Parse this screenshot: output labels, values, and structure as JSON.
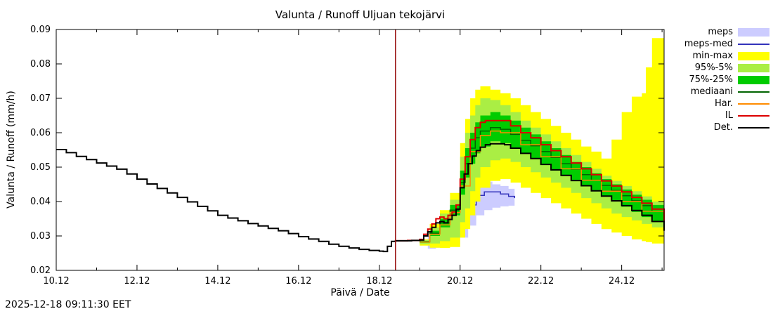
{
  "title": "Valunta / Runoff  Uljuan tekojärvi",
  "timestamp": "2025-12-18 09:11:30 EET",
  "axes": {
    "xlabel": "Päivä / Date",
    "ylabel": "Valunta / Runoff (mm/h)"
  },
  "legend": [
    {
      "label": "meps",
      "swatch": "band",
      "color": "#ccccff"
    },
    {
      "label": "meps-med",
      "swatch": "line",
      "color": "#3333bb"
    },
    {
      "label": "min-max",
      "swatch": "band",
      "color": "#ffff00"
    },
    {
      "label": "95%-5%",
      "swatch": "band",
      "color": "#aaee44"
    },
    {
      "label": "75%-25%",
      "swatch": "band",
      "color": "#00cc00"
    },
    {
      "label": "mediaani",
      "swatch": "line",
      "color": "#006400"
    },
    {
      "label": "Har.",
      "swatch": "line",
      "color": "#ff8c00"
    },
    {
      "label": "IL",
      "swatch": "line",
      "color": "#dd0000"
    },
    {
      "label": "Det.",
      "swatch": "line",
      "color": "#000000"
    }
  ],
  "chart_data": {
    "type": "line",
    "title": "Valunta / Runoff  Uljuan tekojärvi",
    "xlabel": "Päivä / Date",
    "ylabel": "Valunta / Runoff (mm/h)",
    "xlim": [
      10.0,
      25.05
    ],
    "ylim": [
      0.02,
      0.09
    ],
    "grid": false,
    "legend_position": "outside-right",
    "xticks": [
      {
        "v": 10,
        "label": "10.12"
      },
      {
        "v": 12,
        "label": "12.12"
      },
      {
        "v": 14,
        "label": "14.12"
      },
      {
        "v": 16,
        "label": "16.12"
      },
      {
        "v": 18,
        "label": "18.12"
      },
      {
        "v": 20,
        "label": "20.12"
      },
      {
        "v": 22,
        "label": "22.12"
      },
      {
        "v": 24,
        "label": "24.12"
      }
    ],
    "xminor": [
      11,
      13,
      15,
      17,
      19,
      21,
      23,
      25
    ],
    "yticks": [
      {
        "v": 0.02,
        "label": "0.02"
      },
      {
        "v": 0.03,
        "label": "0.03"
      },
      {
        "v": 0.04,
        "label": "0.04"
      },
      {
        "v": 0.05,
        "label": "0.05"
      },
      {
        "v": 0.06,
        "label": "0.06"
      },
      {
        "v": 0.07,
        "label": "0.07"
      },
      {
        "v": 0.08,
        "label": "0.08"
      },
      {
        "v": 0.09,
        "label": "0.09"
      }
    ],
    "now_line": {
      "x": 18.4,
      "color": "#991111"
    },
    "layers": [
      {
        "kind": "band",
        "name": "meps",
        "color": "#ccccff",
        "x": [
          19.2,
          19.4,
          19.6,
          19.8,
          20.0,
          20.2,
          20.4,
          20.6,
          20.8,
          21.0,
          21.2,
          21.35
        ],
        "upper": [
          0.03,
          0.033,
          0.0345,
          0.0368,
          0.04,
          0.0442,
          0.046,
          0.0458,
          0.045,
          0.0445,
          0.0437,
          0.043
        ],
        "lower": [
          0.0263,
          0.0266,
          0.027,
          0.0278,
          0.0295,
          0.033,
          0.036,
          0.0375,
          0.0382,
          0.0386,
          0.0388,
          0.039
        ]
      },
      {
        "kind": "line",
        "name": "meps-med",
        "color": "#3333bb",
        "width": 1.5,
        "x": [
          19.2,
          19.4,
          19.6,
          19.8,
          20.0,
          20.2,
          20.4,
          20.6,
          20.8,
          21.0,
          21.2,
          21.35
        ],
        "y": [
          0.028,
          0.0295,
          0.0305,
          0.032,
          0.0345,
          0.039,
          0.0418,
          0.0428,
          0.0428,
          0.0422,
          0.0415,
          0.041
        ]
      },
      {
        "kind": "band",
        "name": "min-max",
        "color": "#ffff00",
        "x": [
          19.0,
          19.25,
          19.5,
          19.75,
          20.0,
          20.125,
          20.25,
          20.375,
          20.5,
          20.75,
          21.0,
          21.25,
          21.5,
          21.75,
          22.0,
          22.25,
          22.5,
          22.75,
          23.0,
          23.25,
          23.5,
          23.75,
          24.0,
          24.25,
          24.5,
          24.6,
          24.75,
          25.05
        ],
        "upper": [
          0.029,
          0.0335,
          0.0375,
          0.0425,
          0.057,
          0.064,
          0.07,
          0.0725,
          0.0735,
          0.0725,
          0.0715,
          0.07,
          0.068,
          0.066,
          0.064,
          0.062,
          0.06,
          0.058,
          0.056,
          0.0545,
          0.0525,
          0.058,
          0.066,
          0.0705,
          0.0715,
          0.079,
          0.0875,
          0.088
        ],
        "lower": [
          0.0272,
          0.0266,
          0.0265,
          0.0268,
          0.0295,
          0.032,
          0.036,
          0.04,
          0.044,
          0.046,
          0.0465,
          0.0455,
          0.044,
          0.0425,
          0.041,
          0.0395,
          0.038,
          0.0365,
          0.035,
          0.0335,
          0.032,
          0.031,
          0.03,
          0.029,
          0.0285,
          0.0282,
          0.0278,
          0.0272
        ]
      },
      {
        "kind": "band",
        "name": "95-5",
        "color": "#aaee44",
        "x": [
          19.0,
          19.25,
          19.5,
          19.75,
          20.0,
          20.125,
          20.25,
          20.375,
          20.5,
          20.75,
          21.0,
          21.25,
          21.5,
          21.75,
          22.0,
          22.25,
          22.5,
          22.75,
          23.0,
          23.25,
          23.5,
          23.75,
          24.0,
          24.25,
          24.5,
          24.75,
          25.05
        ],
        "upper": [
          0.0288,
          0.0325,
          0.0365,
          0.0405,
          0.053,
          0.06,
          0.065,
          0.068,
          0.07,
          0.0695,
          0.068,
          0.066,
          0.0635,
          0.0615,
          0.0595,
          0.0575,
          0.0555,
          0.0535,
          0.0515,
          0.0495,
          0.0475,
          0.046,
          0.0445,
          0.043,
          0.0415,
          0.04,
          0.0385
        ],
        "lower": [
          0.0276,
          0.0278,
          0.0285,
          0.0295,
          0.034,
          0.038,
          0.043,
          0.047,
          0.05,
          0.052,
          0.0525,
          0.0515,
          0.05,
          0.0485,
          0.047,
          0.0455,
          0.044,
          0.0425,
          0.041,
          0.0395,
          0.038,
          0.0365,
          0.0355,
          0.0345,
          0.0335,
          0.0325,
          0.0305
        ]
      },
      {
        "kind": "band",
        "name": "75-25",
        "color": "#00cc00",
        "x": [
          19.0,
          19.25,
          19.5,
          19.75,
          20.0,
          20.125,
          20.25,
          20.375,
          20.5,
          20.75,
          21.0,
          21.25,
          21.5,
          21.75,
          22.0,
          22.25,
          22.5,
          22.75,
          23.0,
          23.25,
          23.5,
          23.75,
          24.0,
          24.25,
          24.5,
          24.75,
          25.05
        ],
        "upper": [
          0.0285,
          0.0315,
          0.035,
          0.039,
          0.049,
          0.0555,
          0.06,
          0.063,
          0.065,
          0.066,
          0.065,
          0.0635,
          0.0615,
          0.0595,
          0.0575,
          0.0555,
          0.0535,
          0.0515,
          0.05,
          0.0482,
          0.0465,
          0.045,
          0.0435,
          0.042,
          0.0405,
          0.039,
          0.0365
        ],
        "lower": [
          0.028,
          0.03,
          0.0325,
          0.036,
          0.042,
          0.047,
          0.051,
          0.054,
          0.056,
          0.0575,
          0.057,
          0.0555,
          0.054,
          0.0525,
          0.051,
          0.049,
          0.0475,
          0.046,
          0.0445,
          0.043,
          0.0415,
          0.04,
          0.0385,
          0.037,
          0.0355,
          0.034,
          0.0325
        ]
      },
      {
        "kind": "line",
        "name": "mediaani",
        "color": "#006400",
        "width": 1.5,
        "x": [
          19.0,
          19.25,
          19.5,
          19.75,
          20.0,
          20.125,
          20.25,
          20.375,
          20.5,
          20.75,
          21.0,
          21.25,
          21.5,
          21.75,
          22.0,
          22.25,
          22.5,
          22.75,
          23.0,
          23.25,
          23.5,
          23.75,
          24.0,
          24.25,
          24.5,
          24.75,
          25.05
        ],
        "y": [
          0.0283,
          0.0308,
          0.0338,
          0.0375,
          0.0455,
          0.051,
          0.0555,
          0.0585,
          0.0605,
          0.0615,
          0.061,
          0.0595,
          0.0578,
          0.0562,
          0.0545,
          0.0528,
          0.051,
          0.0494,
          0.0478,
          0.0462,
          0.0447,
          0.0432,
          0.0417,
          0.0402,
          0.0388,
          0.0372,
          0.035
        ]
      },
      {
        "kind": "line",
        "name": "Har",
        "color": "#ff8c00",
        "width": 1.5,
        "x": [
          19.0,
          19.25,
          19.5,
          19.75,
          20.0,
          20.25,
          20.5,
          20.75,
          21.0,
          21.5,
          22.0,
          22.5,
          23.0,
          23.5,
          24.0,
          24.5,
          25.05
        ],
        "y": [
          0.0282,
          0.0305,
          0.0332,
          0.0368,
          0.0445,
          0.0545,
          0.0592,
          0.0605,
          0.06,
          0.0565,
          0.053,
          0.0495,
          0.0462,
          0.043,
          0.04,
          0.0372,
          0.0347
        ]
      },
      {
        "kind": "line",
        "name": "IL",
        "color": "#dd0000",
        "width": 2,
        "x": [
          18.4,
          18.7,
          19.0,
          19.1,
          19.2,
          19.3,
          19.4,
          19.5,
          19.6,
          19.7,
          19.8,
          19.9,
          20.0,
          20.125,
          20.25,
          20.375,
          20.5,
          20.625,
          20.75,
          21.0,
          21.25,
          21.5,
          21.75,
          22.0,
          22.25,
          22.5,
          22.75,
          23.0,
          23.25,
          23.5,
          23.75,
          24.0,
          24.25,
          24.5,
          24.75,
          25.05
        ],
        "y": [
          0.0286,
          0.0287,
          0.029,
          0.0305,
          0.032,
          0.0335,
          0.035,
          0.0355,
          0.035,
          0.036,
          0.037,
          0.039,
          0.0465,
          0.053,
          0.058,
          0.0615,
          0.063,
          0.0635,
          0.0635,
          0.0635,
          0.062,
          0.06,
          0.0585,
          0.0565,
          0.0548,
          0.053,
          0.0512,
          0.0495,
          0.0478,
          0.046,
          0.0445,
          0.0428,
          0.0412,
          0.0395,
          0.0378,
          0.034
        ]
      },
      {
        "kind": "line",
        "name": "Det",
        "color": "#000000",
        "width": 2,
        "x": [
          10.0,
          10.25,
          10.5,
          10.75,
          11.0,
          11.25,
          11.5,
          11.75,
          12.0,
          12.25,
          12.5,
          12.75,
          13.0,
          13.25,
          13.5,
          13.75,
          14.0,
          14.25,
          14.5,
          14.75,
          15.0,
          15.25,
          15.5,
          15.75,
          16.0,
          16.25,
          16.5,
          16.75,
          17.0,
          17.25,
          17.5,
          17.75,
          18.0,
          18.1,
          18.2,
          18.3,
          18.4,
          18.6,
          18.8,
          19.0,
          19.1,
          19.2,
          19.3,
          19.4,
          19.5,
          19.6,
          19.7,
          19.8,
          19.9,
          20.0,
          20.1,
          20.2,
          20.3,
          20.4,
          20.5,
          20.625,
          20.75,
          21.0,
          21.1,
          21.25,
          21.5,
          21.75,
          22.0,
          22.25,
          22.5,
          22.75,
          23.0,
          23.25,
          23.5,
          23.75,
          24.0,
          24.25,
          24.5,
          24.75,
          25.05
        ],
        "y": [
          0.0551,
          0.0542,
          0.0531,
          0.0522,
          0.0512,
          0.0503,
          0.0494,
          0.048,
          0.0465,
          0.0451,
          0.0438,
          0.0425,
          0.0412,
          0.0399,
          0.0386,
          0.0373,
          0.036,
          0.0352,
          0.0344,
          0.0336,
          0.0329,
          0.0322,
          0.0315,
          0.0307,
          0.0298,
          0.0291,
          0.0284,
          0.0276,
          0.027,
          0.0265,
          0.0261,
          0.0258,
          0.0256,
          0.0255,
          0.027,
          0.0284,
          0.0286,
          0.0286,
          0.0287,
          0.0288,
          0.03,
          0.0312,
          0.0325,
          0.0338,
          0.0342,
          0.0338,
          0.0348,
          0.036,
          0.0378,
          0.044,
          0.048,
          0.051,
          0.0532,
          0.0548,
          0.0558,
          0.0565,
          0.0568,
          0.0568,
          0.0565,
          0.0555,
          0.054,
          0.0525,
          0.0508,
          0.0492,
          0.0476,
          0.0461,
          0.0446,
          0.0431,
          0.0416,
          0.0402,
          0.0388,
          0.0374,
          0.036,
          0.0342,
          0.0315
        ]
      }
    ]
  }
}
